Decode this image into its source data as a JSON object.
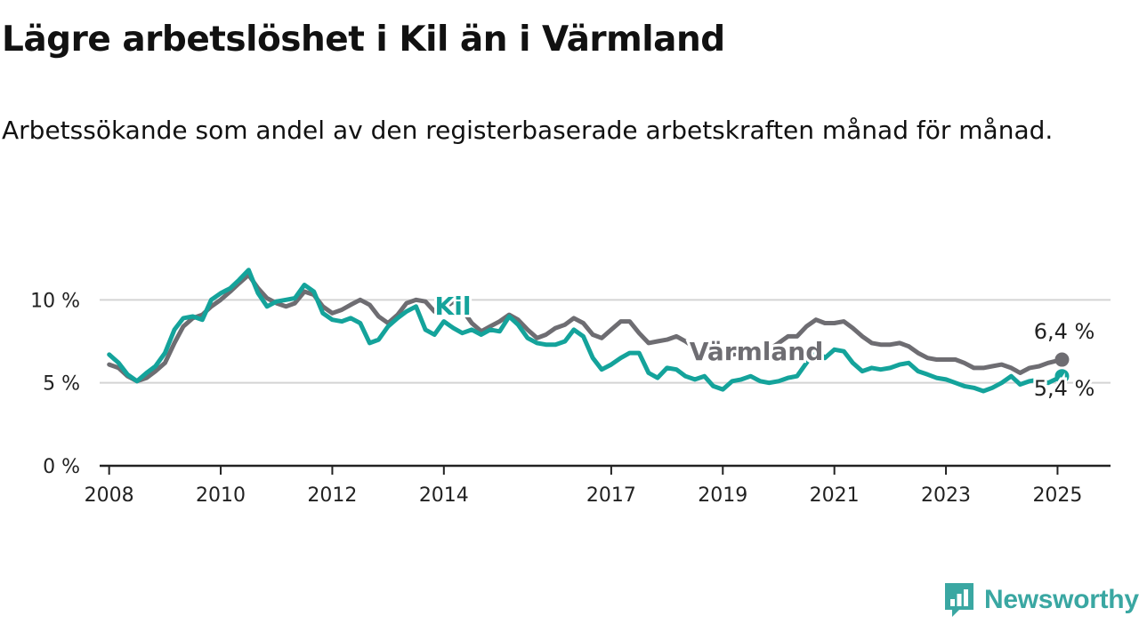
{
  "title": "Lägre arbetslöshet i Kil än i Värmland",
  "subtitle": "Arbetssökande som andel av den registerbaserade arbetskraften månad för månad.",
  "brand": {
    "name": "Newsworthy",
    "icon": "newsworthy-logo-icon",
    "color": "#3aa7a2"
  },
  "chart_data": {
    "type": "line",
    "ylim": [
      0,
      12
    ],
    "xlim": [
      2007.83,
      2025.95
    ],
    "y_ticks": [
      {
        "value": 0,
        "label": "0 %"
      },
      {
        "value": 5,
        "label": "5 %"
      },
      {
        "value": 10,
        "label": "10 %"
      }
    ],
    "x_ticks": [
      {
        "value": 2008,
        "label": "2008"
      },
      {
        "value": 2010,
        "label": "2010"
      },
      {
        "value": 2012,
        "label": "2012"
      },
      {
        "value": 2014,
        "label": "2014"
      },
      {
        "value": 2017,
        "label": "2017"
      },
      {
        "value": 2019,
        "label": "2019"
      },
      {
        "value": 2021,
        "label": "2021"
      },
      {
        "value": 2023,
        "label": "2023"
      },
      {
        "value": 2025,
        "label": "2025"
      }
    ],
    "grid": true,
    "series": [
      {
        "name": "Värmland",
        "color": "#6e6d72",
        "end_label": "6,4 %",
        "points": [
          [
            2008.0,
            6.1
          ],
          [
            2008.17,
            5.9
          ],
          [
            2008.33,
            5.4
          ],
          [
            2008.5,
            5.1
          ],
          [
            2008.67,
            5.3
          ],
          [
            2008.83,
            5.7
          ],
          [
            2009.0,
            6.2
          ],
          [
            2009.17,
            7.4
          ],
          [
            2009.33,
            8.4
          ],
          [
            2009.5,
            8.9
          ],
          [
            2009.67,
            9.1
          ],
          [
            2009.83,
            9.6
          ],
          [
            2010.0,
            10.0
          ],
          [
            2010.17,
            10.5
          ],
          [
            2010.33,
            11.0
          ],
          [
            2010.5,
            11.5
          ],
          [
            2010.67,
            10.7
          ],
          [
            2010.83,
            10.1
          ],
          [
            2011.0,
            9.8
          ],
          [
            2011.17,
            9.6
          ],
          [
            2011.33,
            9.8
          ],
          [
            2011.5,
            10.5
          ],
          [
            2011.67,
            10.3
          ],
          [
            2011.83,
            9.6
          ],
          [
            2012.0,
            9.2
          ],
          [
            2012.17,
            9.4
          ],
          [
            2012.33,
            9.7
          ],
          [
            2012.5,
            10.0
          ],
          [
            2012.67,
            9.7
          ],
          [
            2012.83,
            9.0
          ],
          [
            2013.0,
            8.6
          ],
          [
            2013.17,
            9.1
          ],
          [
            2013.33,
            9.8
          ],
          [
            2013.5,
            10.0
          ],
          [
            2013.67,
            9.9
          ],
          [
            2013.83,
            9.3
          ],
          [
            2014.0,
            9.5
          ],
          [
            2014.17,
            9.9
          ],
          [
            2014.33,
            9.4
          ],
          [
            2014.5,
            8.6
          ],
          [
            2014.67,
            8.1
          ],
          [
            2014.83,
            8.4
          ],
          [
            2015.0,
            8.7
          ],
          [
            2015.17,
            9.1
          ],
          [
            2015.33,
            8.8
          ],
          [
            2015.5,
            8.2
          ],
          [
            2015.67,
            7.7
          ],
          [
            2015.83,
            7.9
          ],
          [
            2016.0,
            8.3
          ],
          [
            2016.17,
            8.5
          ],
          [
            2016.33,
            8.9
          ],
          [
            2016.5,
            8.6
          ],
          [
            2016.67,
            7.9
          ],
          [
            2016.83,
            7.7
          ],
          [
            2017.0,
            8.2
          ],
          [
            2017.17,
            8.7
          ],
          [
            2017.33,
            8.7
          ],
          [
            2017.5,
            8.0
          ],
          [
            2017.67,
            7.4
          ],
          [
            2017.83,
            7.5
          ],
          [
            2018.0,
            7.6
          ],
          [
            2018.17,
            7.8
          ],
          [
            2018.33,
            7.5
          ],
          [
            2018.5,
            7.1
          ],
          [
            2018.67,
            6.8
          ],
          [
            2018.83,
            6.6
          ],
          [
            2019.0,
            6.6
          ],
          [
            2019.17,
            6.7
          ],
          [
            2019.33,
            6.8
          ],
          [
            2019.5,
            6.7
          ],
          [
            2019.67,
            6.6
          ],
          [
            2019.83,
            7.0
          ],
          [
            2020.0,
            7.4
          ],
          [
            2020.17,
            7.8
          ],
          [
            2020.33,
            7.8
          ],
          [
            2020.5,
            8.4
          ],
          [
            2020.67,
            8.8
          ],
          [
            2020.83,
            8.6
          ],
          [
            2021.0,
            8.6
          ],
          [
            2021.17,
            8.7
          ],
          [
            2021.33,
            8.3
          ],
          [
            2021.5,
            7.8
          ],
          [
            2021.67,
            7.4
          ],
          [
            2021.83,
            7.3
          ],
          [
            2022.0,
            7.3
          ],
          [
            2022.17,
            7.4
          ],
          [
            2022.33,
            7.2
          ],
          [
            2022.5,
            6.8
          ],
          [
            2022.67,
            6.5
          ],
          [
            2022.83,
            6.4
          ],
          [
            2023.0,
            6.4
          ],
          [
            2023.17,
            6.4
          ],
          [
            2023.33,
            6.2
          ],
          [
            2023.5,
            5.9
          ],
          [
            2023.67,
            5.9
          ],
          [
            2023.83,
            6.0
          ],
          [
            2024.0,
            6.1
          ],
          [
            2024.17,
            5.9
          ],
          [
            2024.33,
            5.6
          ],
          [
            2024.5,
            5.9
          ],
          [
            2024.67,
            6.0
          ],
          [
            2024.83,
            6.2
          ],
          [
            2025.08,
            6.4
          ]
        ]
      },
      {
        "name": "Kil",
        "color": "#14a39b",
        "end_label": "5,4 %",
        "points": [
          [
            2008.0,
            6.7
          ],
          [
            2008.17,
            6.2
          ],
          [
            2008.33,
            5.5
          ],
          [
            2008.5,
            5.1
          ],
          [
            2008.67,
            5.6
          ],
          [
            2008.83,
            6.0
          ],
          [
            2009.0,
            6.8
          ],
          [
            2009.17,
            8.2
          ],
          [
            2009.33,
            8.9
          ],
          [
            2009.5,
            9.0
          ],
          [
            2009.67,
            8.8
          ],
          [
            2009.83,
            10.0
          ],
          [
            2010.0,
            10.4
          ],
          [
            2010.17,
            10.7
          ],
          [
            2010.33,
            11.2
          ],
          [
            2010.5,
            11.8
          ],
          [
            2010.67,
            10.4
          ],
          [
            2010.83,
            9.6
          ],
          [
            2011.0,
            9.9
          ],
          [
            2011.17,
            10.0
          ],
          [
            2011.33,
            10.1
          ],
          [
            2011.5,
            10.9
          ],
          [
            2011.67,
            10.5
          ],
          [
            2011.83,
            9.2
          ],
          [
            2012.0,
            8.8
          ],
          [
            2012.17,
            8.7
          ],
          [
            2012.33,
            8.9
          ],
          [
            2012.5,
            8.6
          ],
          [
            2012.67,
            7.4
          ],
          [
            2012.83,
            7.6
          ],
          [
            2013.0,
            8.4
          ],
          [
            2013.17,
            8.9
          ],
          [
            2013.33,
            9.3
          ],
          [
            2013.5,
            9.6
          ],
          [
            2013.67,
            8.2
          ],
          [
            2013.83,
            7.9
          ],
          [
            2014.0,
            8.7
          ],
          [
            2014.17,
            8.3
          ],
          [
            2014.33,
            8.0
          ],
          [
            2014.5,
            8.2
          ],
          [
            2014.67,
            7.9
          ],
          [
            2014.83,
            8.2
          ],
          [
            2015.0,
            8.1
          ],
          [
            2015.17,
            9.0
          ],
          [
            2015.33,
            8.5
          ],
          [
            2015.5,
            7.7
          ],
          [
            2015.67,
            7.4
          ],
          [
            2015.83,
            7.3
          ],
          [
            2016.0,
            7.3
          ],
          [
            2016.17,
            7.5
          ],
          [
            2016.33,
            8.2
          ],
          [
            2016.5,
            7.8
          ],
          [
            2016.67,
            6.5
          ],
          [
            2016.83,
            5.8
          ],
          [
            2017.0,
            6.1
          ],
          [
            2017.17,
            6.5
          ],
          [
            2017.33,
            6.8
          ],
          [
            2017.5,
            6.8
          ],
          [
            2017.67,
            5.6
          ],
          [
            2017.83,
            5.3
          ],
          [
            2018.0,
            5.9
          ],
          [
            2018.17,
            5.8
          ],
          [
            2018.33,
            5.4
          ],
          [
            2018.5,
            5.2
          ],
          [
            2018.67,
            5.4
          ],
          [
            2018.83,
            4.8
          ],
          [
            2019.0,
            4.6
          ],
          [
            2019.17,
            5.1
          ],
          [
            2019.33,
            5.2
          ],
          [
            2019.5,
            5.4
          ],
          [
            2019.67,
            5.1
          ],
          [
            2019.83,
            5.0
          ],
          [
            2020.0,
            5.1
          ],
          [
            2020.17,
            5.3
          ],
          [
            2020.33,
            5.4
          ],
          [
            2020.5,
            6.2
          ],
          [
            2020.67,
            7.0
          ],
          [
            2020.83,
            6.5
          ],
          [
            2021.0,
            7.0
          ],
          [
            2021.17,
            6.9
          ],
          [
            2021.33,
            6.2
          ],
          [
            2021.5,
            5.7
          ],
          [
            2021.67,
            5.9
          ],
          [
            2021.83,
            5.8
          ],
          [
            2022.0,
            5.9
          ],
          [
            2022.17,
            6.1
          ],
          [
            2022.33,
            6.2
          ],
          [
            2022.5,
            5.7
          ],
          [
            2022.67,
            5.5
          ],
          [
            2022.83,
            5.3
          ],
          [
            2023.0,
            5.2
          ],
          [
            2023.17,
            5.0
          ],
          [
            2023.33,
            4.8
          ],
          [
            2023.5,
            4.7
          ],
          [
            2023.67,
            4.5
          ],
          [
            2023.83,
            4.7
          ],
          [
            2024.0,
            5.0
          ],
          [
            2024.17,
            5.4
          ],
          [
            2024.33,
            4.9
          ],
          [
            2024.5,
            5.1
          ],
          [
            2024.67,
            5.2
          ],
          [
            2024.83,
            5.0
          ],
          [
            2025.08,
            5.4
          ]
        ]
      }
    ]
  }
}
